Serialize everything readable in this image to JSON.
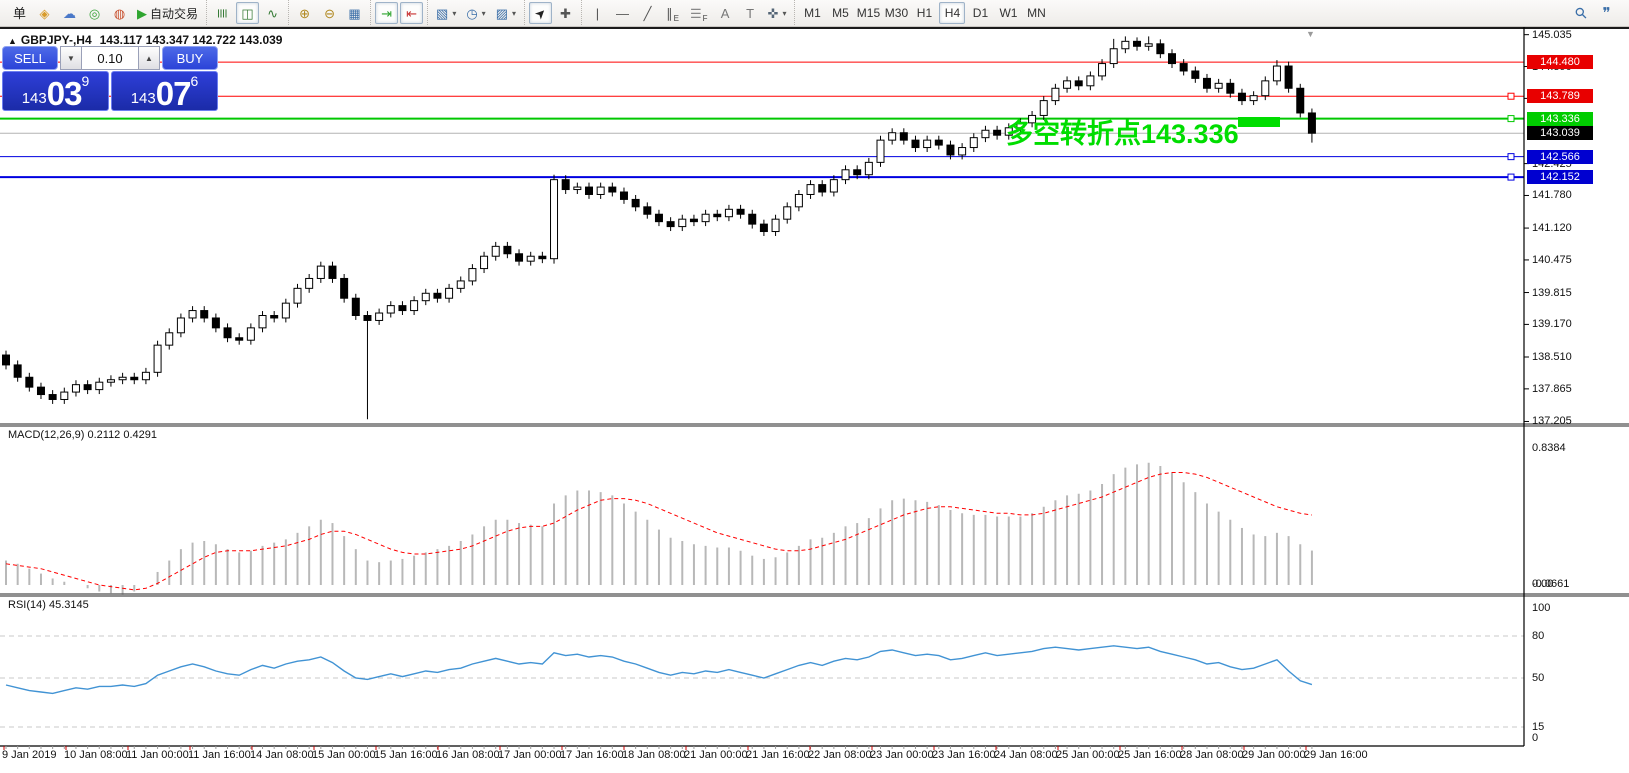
{
  "toolbar": {
    "groups": [
      {
        "name": "trade",
        "items": [
          {
            "name": "new-order-button",
            "glyph": "单",
            "color": "#222222"
          },
          {
            "name": "market-watch-icon",
            "glyph": "◈",
            "color": "#D89B2A"
          },
          {
            "name": "community-icon",
            "glyph": "☁",
            "color": "#4A78C8"
          },
          {
            "name": "signals-icon",
            "glyph": "◎",
            "color": "#3AA53A"
          },
          {
            "name": "market-icon",
            "glyph": "◍",
            "color": "#C8502E"
          },
          {
            "name": "auto-trading-button",
            "glyph": "▶",
            "color": "#2FA52F",
            "label": "自动交易"
          }
        ]
      },
      {
        "name": "chart-type",
        "items": [
          {
            "name": "bar-chart-button",
            "glyph": "≣",
            "color": "#357a35",
            "cls": "rot90"
          },
          {
            "name": "candlestick-button",
            "glyph": "◫",
            "color": "#357a35",
            "selected": true
          },
          {
            "name": "line-chart-button",
            "glyph": "∿",
            "color": "#357a35"
          }
        ]
      },
      {
        "name": "zoom",
        "items": [
          {
            "name": "zoom-in-button",
            "glyph": "⊕",
            "color": "#b08820"
          },
          {
            "name": "zoom-out-button",
            "glyph": "⊖",
            "color": "#b08820"
          },
          {
            "name": "tile-windows-button",
            "glyph": "▦",
            "color": "#3a6ea8"
          }
        ]
      },
      {
        "name": "scroll",
        "items": [
          {
            "name": "auto-scroll-button",
            "glyph": "⇥",
            "color": "#2FA52F",
            "selected": true
          },
          {
            "name": "chart-shift-button",
            "glyph": "⇤",
            "color": "#C83232",
            "selected": true
          }
        ]
      },
      {
        "name": "profiles",
        "items": [
          {
            "name": "new-chart-button",
            "glyph": "▧",
            "color": "#3a6ea8",
            "dropdown": true
          },
          {
            "name": "periods-button",
            "glyph": "◷",
            "color": "#3a6ea8",
            "dropdown": true
          },
          {
            "name": "indicators-button",
            "glyph": "▨",
            "color": "#3a6ea8",
            "dropdown": true
          }
        ]
      },
      {
        "name": "cursor-tools",
        "items": [
          {
            "name": "cursor-button",
            "glyph": "➤",
            "color": "#222222",
            "selected": true,
            "cls": "rot45"
          },
          {
            "name": "crosshair-button",
            "glyph": "✚",
            "color": "#555555"
          }
        ]
      },
      {
        "name": "draw-tools",
        "items": [
          {
            "name": "vertical-line-button",
            "glyph": "|",
            "color": "#555555"
          },
          {
            "name": "horizontal-line-button",
            "glyph": "—",
            "color": "#555555"
          },
          {
            "name": "trendline-button",
            "glyph": "╱",
            "color": "#555555"
          },
          {
            "name": "channel-button",
            "glyph": "∥",
            "color": "#555555",
            "sub": "E"
          },
          {
            "name": "fibonacci-button",
            "glyph": "☰",
            "color": "#888888",
            "sub": "F"
          },
          {
            "name": "text-button",
            "glyph": "A",
            "color": "#777777"
          },
          {
            "name": "text-label-button",
            "glyph": "T",
            "color": "#777777"
          },
          {
            "name": "arrows-button",
            "glyph": "✜",
            "color": "#556677",
            "dropdown": true
          }
        ]
      }
    ],
    "timeframes": {
      "items": [
        "M1",
        "M5",
        "M15",
        "M30",
        "H1",
        "H4",
        "D1",
        "W1",
        "MN"
      ],
      "selected": "H4"
    },
    "right_icons": [
      {
        "name": "search-icon",
        "glyph": "⚲",
        "cls": "rot45"
      },
      {
        "name": "chat-icon",
        "glyph": "❞"
      }
    ]
  },
  "chart": {
    "title": {
      "marker": "▲",
      "symbol": "GBPJPY-,H4",
      "ohlc": "143.117 143.347 142.722 143.039"
    },
    "trading_panel": {
      "sell_label": "SELL",
      "buy_label": "BUY",
      "volume": "0.10",
      "down_arrow": "▼",
      "up_arrow": "▲",
      "sell_price": {
        "prefix": "143",
        "big": "03",
        "sup": "9"
      },
      "buy_price": {
        "prefix": "143",
        "big": "07",
        "sup": "6"
      }
    },
    "annotation": {
      "text": "多空转折点143.336",
      "color": "#00DD00"
    },
    "shift_marker": "▼",
    "hlines": [
      {
        "price": 144.48,
        "color": "#FF0000",
        "width": 1,
        "handle": false
      },
      {
        "price": 143.789,
        "color": "#FF0000",
        "width": 1,
        "handle": true
      },
      {
        "price": 143.336,
        "color": "#00C800",
        "width": 2,
        "handle": true
      },
      {
        "price": 143.039,
        "color": "#B4B4B4",
        "width": 1,
        "handle": false
      },
      {
        "price": 142.566,
        "color": "#0000E0",
        "width": 1,
        "handle": true
      },
      {
        "price": 142.152,
        "color": "#0000E0",
        "width": 2,
        "handle": true
      }
    ],
    "price_axis": {
      "ticks": [
        "145.035",
        "144.390",
        "143.745",
        "142.425",
        "141.780",
        "141.120",
        "140.475",
        "139.815",
        "139.170",
        "138.510",
        "137.865",
        "137.205"
      ],
      "badges": [
        {
          "text": "144.480",
          "price": 144.48,
          "bg": "#E80000"
        },
        {
          "text": "143.789",
          "price": 143.789,
          "bg": "#E80000"
        },
        {
          "text": "143.336",
          "price": 143.336,
          "bg": "#00CC00"
        },
        {
          "text": "143.039",
          "price": 143.039,
          "bg": "#000000"
        },
        {
          "text": "142.566",
          "price": 142.566,
          "bg": "#0000D0"
        },
        {
          "text": "142.152",
          "price": 142.152,
          "bg": "#0000D0"
        }
      ]
    },
    "candles": {
      "first_open": 138.55,
      "wick": 0.09,
      "closes": [
        138.35,
        138.1,
        137.9,
        137.75,
        137.65,
        137.8,
        137.95,
        137.85,
        138.0,
        138.05,
        138.1,
        138.05,
        138.2,
        138.75,
        139.0,
        139.3,
        139.45,
        139.3,
        139.1,
        138.9,
        138.85,
        139.1,
        139.35,
        139.3,
        139.6,
        139.9,
        140.1,
        140.35,
        140.1,
        139.7,
        139.35,
        139.25,
        139.4,
        139.55,
        139.45,
        139.65,
        139.8,
        139.7,
        139.9,
        140.05,
        140.3,
        140.55,
        140.75,
        140.6,
        140.45,
        140.55,
        140.5,
        142.1,
        141.9,
        141.95,
        141.8,
        141.95,
        141.85,
        141.7,
        141.55,
        141.4,
        141.25,
        141.15,
        141.3,
        141.25,
        141.4,
        141.35,
        141.5,
        141.4,
        141.2,
        141.05,
        141.3,
        141.55,
        141.8,
        142.0,
        141.85,
        142.1,
        142.3,
        142.2,
        142.45,
        142.9,
        143.05,
        142.9,
        142.75,
        142.9,
        142.8,
        142.6,
        142.75,
        142.95,
        143.1,
        143.0,
        143.15,
        143.25,
        143.4,
        143.7,
        143.95,
        144.1,
        144.0,
        144.2,
        144.45,
        144.75,
        144.9,
        144.8,
        144.85,
        144.65,
        144.45,
        144.3,
        144.15,
        143.95,
        144.05,
        143.85,
        143.7,
        143.8,
        144.1,
        144.4,
        143.95,
        143.45,
        143.04
      ],
      "overrides": {
        "31": {
          "low": 137.25
        },
        "47": {
          "high": 142.2,
          "low": 140.4
        },
        "95": {
          "high": 144.95
        },
        "96": {
          "high": 145.0
        },
        "97": {
          "high": 144.98
        },
        "98": {
          "high": 145.0
        },
        "109": {
          "high": 144.52
        },
        "112": {
          "low": 142.85
        }
      }
    },
    "time_axis": {
      "labels": [
        "9 Jan 2019",
        "10 Jan 08:00",
        "11 Jan 00:00",
        "11 Jan 16:00",
        "14 Jan 08:00",
        "15 Jan 00:00",
        "15 Jan 16:00",
        "16 Jan 08:00",
        "17 Jan 00:00",
        "17 Jan 16:00",
        "18 Jan 08:00",
        "21 Jan 00:00",
        "21 Jan 16:00",
        "22 Jan 08:00",
        "23 Jan 00:00",
        "23 Jan 16:00",
        "24 Jan 08:00",
        "25 Jan 00:00",
        "25 Jan 16:00",
        "28 Jan 08:00",
        "29 Jan 00:00",
        "29 Jan 16:00"
      ]
    }
  },
  "macd": {
    "label": "MACD(12,26,9) 0.2112 0.4291",
    "axis_labels": [
      {
        "text": "0.8384",
        "value": 0.8384
      },
      {
        "text": "0.00",
        "value": 0.0
      },
      {
        "text": "-0.0661",
        "value": -0.0661
      }
    ],
    "hist": [
      0.15,
      0.13,
      0.1,
      0.07,
      0.04,
      0.02,
      0.0,
      -0.02,
      -0.04,
      -0.05,
      -0.06,
      -0.04,
      0.0,
      0.08,
      0.15,
      0.22,
      0.26,
      0.27,
      0.25,
      0.22,
      0.2,
      0.21,
      0.24,
      0.26,
      0.28,
      0.32,
      0.36,
      0.4,
      0.38,
      0.3,
      0.22,
      0.15,
      0.14,
      0.15,
      0.16,
      0.18,
      0.2,
      0.22,
      0.24,
      0.27,
      0.31,
      0.36,
      0.4,
      0.4,
      0.38,
      0.37,
      0.36,
      0.5,
      0.55,
      0.58,
      0.58,
      0.57,
      0.55,
      0.5,
      0.45,
      0.4,
      0.34,
      0.29,
      0.27,
      0.25,
      0.24,
      0.23,
      0.23,
      0.21,
      0.18,
      0.16,
      0.17,
      0.2,
      0.24,
      0.28,
      0.29,
      0.32,
      0.36,
      0.38,
      0.41,
      0.47,
      0.52,
      0.53,
      0.52,
      0.51,
      0.49,
      0.46,
      0.44,
      0.43,
      0.43,
      0.42,
      0.42,
      0.42,
      0.44,
      0.48,
      0.52,
      0.55,
      0.56,
      0.58,
      0.62,
      0.68,
      0.72,
      0.74,
      0.75,
      0.73,
      0.69,
      0.63,
      0.57,
      0.5,
      0.45,
      0.4,
      0.35,
      0.31,
      0.3,
      0.32,
      0.3,
      0.25,
      0.2112
    ],
    "signal": [
      0.13,
      0.12,
      0.11,
      0.1,
      0.08,
      0.06,
      0.04,
      0.02,
      0.0,
      -0.01,
      -0.02,
      -0.03,
      -0.02,
      0.01,
      0.05,
      0.09,
      0.13,
      0.17,
      0.2,
      0.21,
      0.21,
      0.21,
      0.22,
      0.23,
      0.24,
      0.26,
      0.28,
      0.31,
      0.33,
      0.33,
      0.31,
      0.28,
      0.25,
      0.22,
      0.2,
      0.19,
      0.19,
      0.2,
      0.21,
      0.22,
      0.24,
      0.27,
      0.3,
      0.33,
      0.35,
      0.36,
      0.36,
      0.38,
      0.42,
      0.46,
      0.49,
      0.52,
      0.53,
      0.53,
      0.52,
      0.5,
      0.47,
      0.44,
      0.41,
      0.38,
      0.35,
      0.32,
      0.3,
      0.28,
      0.26,
      0.24,
      0.22,
      0.21,
      0.21,
      0.22,
      0.24,
      0.26,
      0.28,
      0.31,
      0.34,
      0.37,
      0.4,
      0.43,
      0.45,
      0.47,
      0.48,
      0.48,
      0.47,
      0.46,
      0.45,
      0.44,
      0.44,
      0.43,
      0.43,
      0.44,
      0.46,
      0.48,
      0.5,
      0.52,
      0.54,
      0.57,
      0.6,
      0.63,
      0.66,
      0.68,
      0.69,
      0.69,
      0.68,
      0.66,
      0.63,
      0.6,
      0.57,
      0.54,
      0.51,
      0.48,
      0.46,
      0.44,
      0.4291
    ]
  },
  "rsi": {
    "label": "RSI(14) 45.3145",
    "levels": [
      80,
      50,
      15
    ],
    "axis_labels": [
      {
        "text": "100",
        "value": 100
      },
      {
        "text": "80",
        "value": 80
      },
      {
        "text": "50",
        "value": 50
      },
      {
        "text": "15",
        "value": 15
      },
      {
        "text": "0",
        "value": 0
      }
    ],
    "values": [
      45,
      43,
      41,
      40,
      39,
      41,
      43,
      42,
      44,
      44,
      45,
      44,
      46,
      52,
      55,
      58,
      60,
      58,
      55,
      53,
      52,
      56,
      59,
      57,
      60,
      62,
      63,
      65,
      61,
      55,
      50,
      49,
      51,
      53,
      51,
      53,
      55,
      54,
      56,
      57,
      60,
      62,
      64,
      62,
      60,
      61,
      60,
      68,
      66,
      67,
      65,
      66,
      65,
      62,
      60,
      57,
      54,
      52,
      54,
      53,
      55,
      54,
      56,
      54,
      52,
      50,
      53,
      56,
      59,
      61,
      59,
      62,
      64,
      63,
      65,
      69,
      70,
      68,
      66,
      67,
      66,
      63,
      64,
      66,
      68,
      66,
      67,
      68,
      69,
      71,
      72,
      71,
      70,
      71,
      72,
      73,
      72,
      71,
      72,
      69,
      67,
      65,
      63,
      60,
      61,
      58,
      56,
      57,
      60,
      63,
      55,
      48,
      45.31
    ]
  },
  "colors": {
    "up_candle": "#FFFFFF",
    "down_candle": "#000000",
    "candle_border": "#000000",
    "macd_hist": "#B8B8B8",
    "macd_signal": "#FF0000",
    "rsi_line": "#4193D4",
    "level_dash": "#C8C8C8",
    "separator": "#4d4d4d",
    "axis_line": "#000000"
  }
}
